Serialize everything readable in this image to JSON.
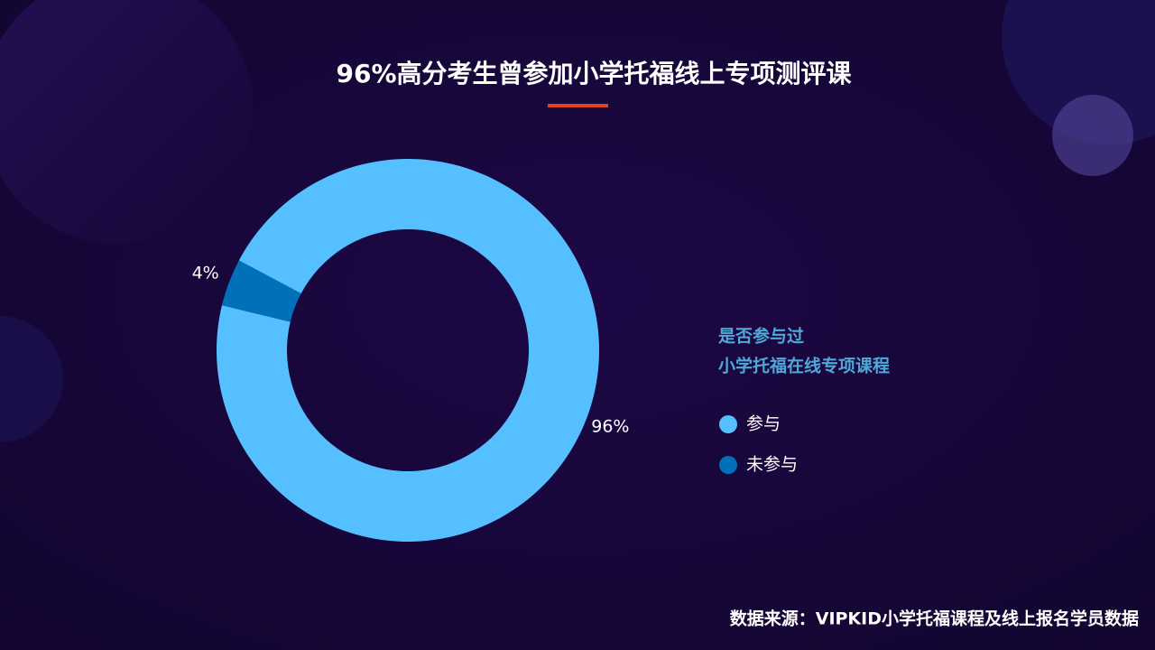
{
  "chart_data": {
    "type": "pie",
    "title": "96%高分考生曾参加小学托福线上专项测评课",
    "legend_title": [
      "是否参与过",
      "小学托福在线专项课程"
    ],
    "categories": [
      "参与",
      "未参与"
    ],
    "values": [
      96,
      4
    ],
    "value_labels": [
      "96%",
      "4%"
    ],
    "colors": [
      "#55bfff",
      "#0070b8"
    ],
    "legend": "right",
    "source": "数据来源：VIPKID小学托福课程及线上报名学员数据"
  }
}
